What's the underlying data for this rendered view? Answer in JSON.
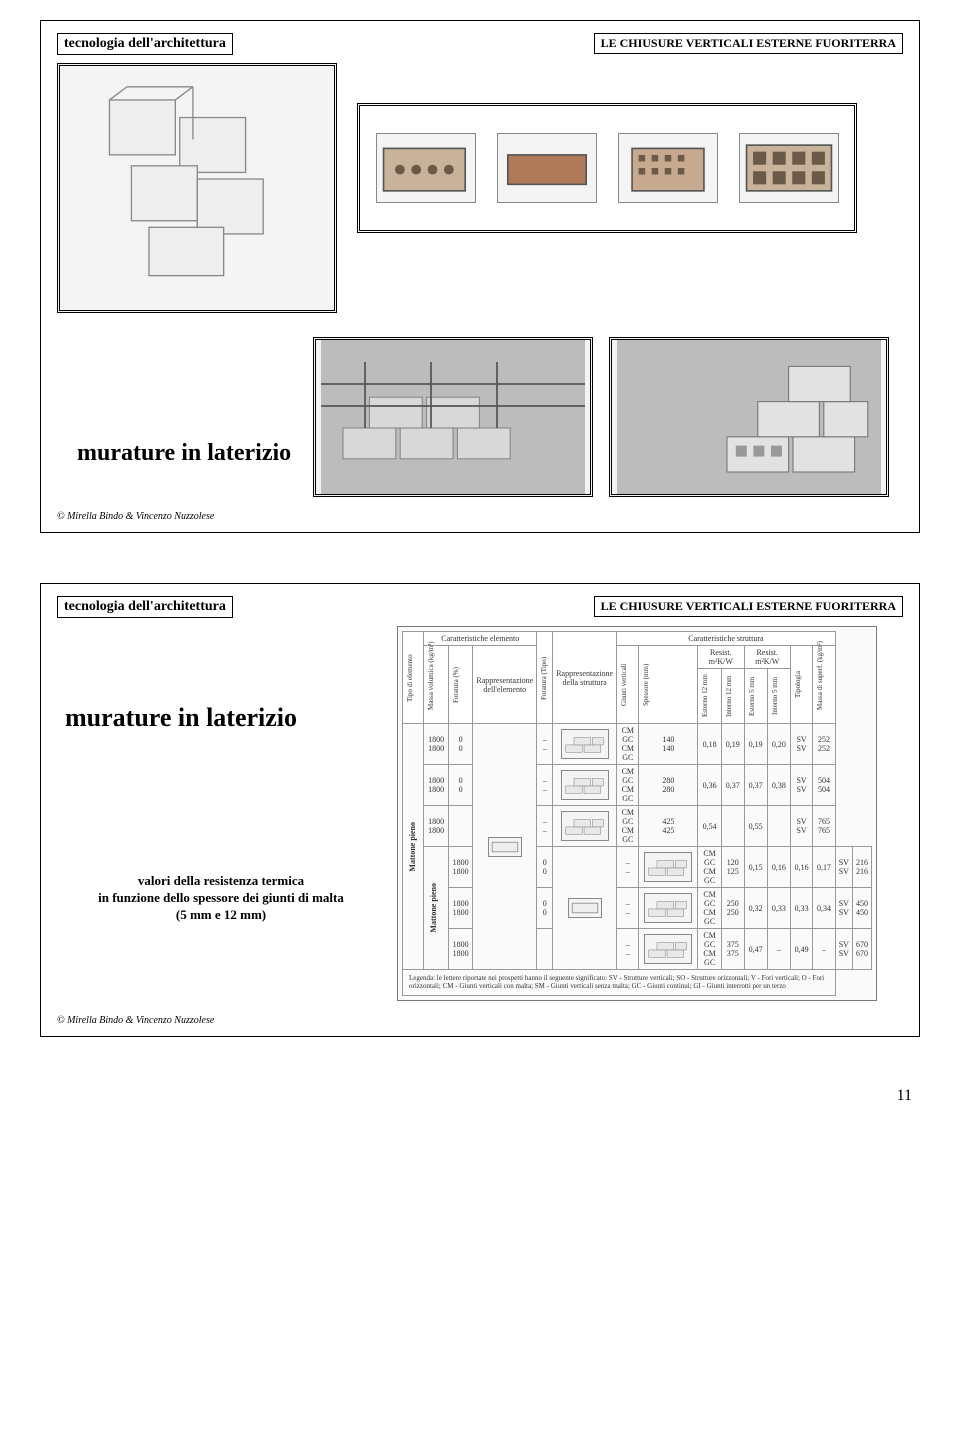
{
  "page_number": "11",
  "header_left": "tecnologia dell'architettura",
  "header_right": "LE CHIUSURE VERTICALI ESTERNE FUORITERRA",
  "slide1": {
    "caption": "murature in laterizio",
    "credit": "©  Mirella Bindo & Vincenzo Nuzzolese"
  },
  "slide2": {
    "heading": "murature in laterizio",
    "subcaption_l1": "valori della resistenza termica",
    "subcaption_l2": "in funzione dello spessore dei giunti di malta",
    "subcaption_l3": "(5 mm e 12 mm)",
    "credit": "©  Mirella Bindo & Vincenzo Nuzzolese",
    "table": {
      "top_headers": {
        "carat_elemento": "Caratteristiche elemento",
        "carat_struttura": "Caratteristiche struttura",
        "tipo": "Tipo di elemento",
        "massa_vol": "Massa volumica (kg/m³)",
        "foratura": "Foratura (%)",
        "rappr_el": "Rappresentazione dell'elemento",
        "foratura_tipo": "Foratura (Tipo)",
        "rappr_str": "Rappresentazione della struttura",
        "giunti": "Giunti verticali",
        "spessore": "Spessore (mm)",
        "resist12": "Resist. m²K/W",
        "resist5": "Resist. m²K/W",
        "est12": "Esterno 12 mm",
        "int12": "Interno 12 mm",
        "est5": "Esterno 5 mm",
        "int5": "Interno 5 mm",
        "tipologia": "Tipologia",
        "massa_sup": "Massa di superf. (kg/m²)"
      },
      "group_labels": [
        "Mattone pieno",
        "Mattone pieno"
      ],
      "rows": [
        {
          "mv": "1800",
          "for": "0",
          "ft": "–",
          "gv": "CM GC",
          "sp": "140",
          "e12": "0,18",
          "i12": "0,19",
          "e5": "",
          "i5": "",
          "tip": "SV",
          "ms": "252"
        },
        {
          "mv": "1800",
          "for": "0",
          "ft": "–",
          "gv": "CM GC",
          "sp": "140",
          "e12": "",
          "i12": "",
          "e5": "0,19",
          "i5": "0,20",
          "tip": "SV",
          "ms": "252"
        },
        {
          "mv": "1800",
          "for": "0",
          "ft": "–",
          "gv": "CM GC",
          "sp": "280",
          "e12": "0,36",
          "i12": "0,37",
          "e5": "",
          "i5": "",
          "tip": "SV",
          "ms": "504"
        },
        {
          "mv": "1800",
          "for": "0",
          "ft": "–",
          "gv": "CM GC",
          "sp": "280",
          "e12": "",
          "i12": "",
          "e5": "0,37",
          "i5": "0,38",
          "tip": "SV",
          "ms": "504"
        },
        {
          "mv": "1800",
          "for": "",
          "ft": "–",
          "gv": "CM GC",
          "sp": "425",
          "e12": "0,54",
          "i12": "",
          "e5": "",
          "i5": "",
          "tip": "SV",
          "ms": "765"
        },
        {
          "mv": "1800",
          "for": "",
          "ft": "–",
          "gv": "CM GC",
          "sp": "425",
          "e12": "",
          "i12": "",
          "e5": "0,55",
          "i5": "",
          "tip": "SV",
          "ms": "765"
        },
        {
          "mv": "1800",
          "for": "0",
          "ft": "–",
          "gv": "CM GC",
          "sp": "120",
          "e12": "0,15",
          "i12": "0,16",
          "e5": "",
          "i5": "",
          "tip": "SV",
          "ms": "216"
        },
        {
          "mv": "1800",
          "for": "0",
          "ft": "–",
          "gv": "CM GC",
          "sp": "125",
          "e12": "",
          "i12": "",
          "e5": "0,16",
          "i5": "0,17",
          "tip": "SV",
          "ms": "216"
        },
        {
          "mv": "1800",
          "for": "0",
          "ft": "–",
          "gv": "CM GC",
          "sp": "250",
          "e12": "0,32",
          "i12": "0,33",
          "e5": "",
          "i5": "",
          "tip": "SV",
          "ms": "450"
        },
        {
          "mv": "1800",
          "for": "0",
          "ft": "–",
          "gv": "CM GC",
          "sp": "250",
          "e12": "",
          "i12": "",
          "e5": "0,33",
          "i5": "0,34",
          "tip": "SV",
          "ms": "450"
        },
        {
          "mv": "1800",
          "for": "",
          "ft": "–",
          "gv": "CM GC",
          "sp": "375",
          "e12": "0,47",
          "i12": "–",
          "e5": "",
          "i5": "",
          "tip": "SV",
          "ms": "670"
        },
        {
          "mv": "1800",
          "for": "",
          "ft": "–",
          "gv": "CM GC",
          "sp": "375",
          "e12": "",
          "i12": "",
          "e5": "0,49",
          "i5": "–",
          "tip": "SV",
          "ms": "670"
        }
      ],
      "legend": "Legenda: le lettere riportate nei prospetti hanno il seguente significato: SV - Strutture verticali; SO - Strutture orizzontali; V - Fori verticali; O - Fori orizzontali; CM - Giunti verticali con malta; SM - Giunti verticali senza malta; GC - Giunti continui; GI - Giunti interrotti per un terzo"
    }
  }
}
